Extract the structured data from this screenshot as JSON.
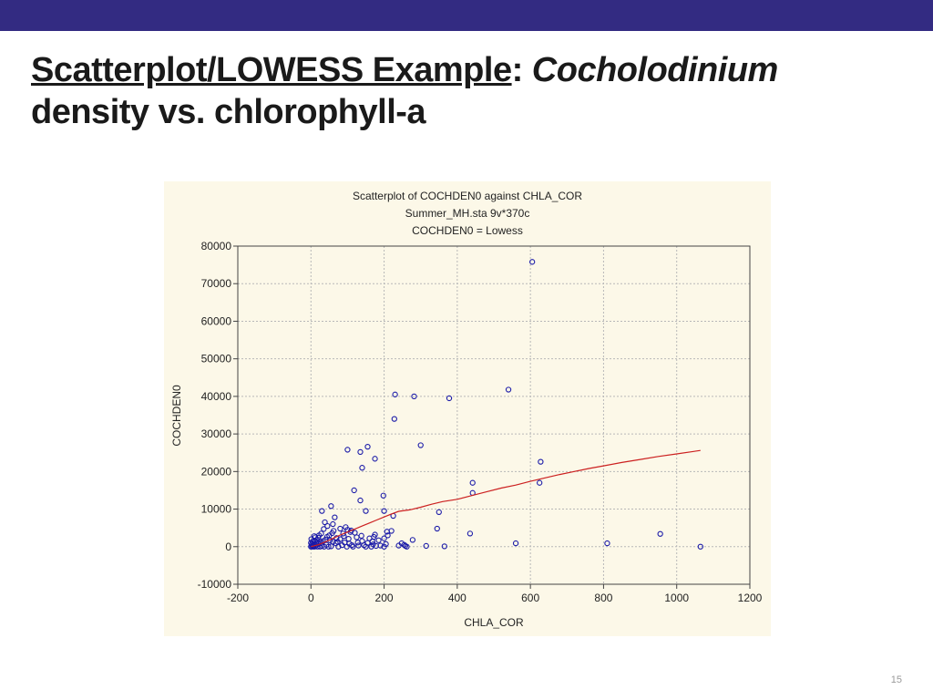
{
  "slide": {
    "title_underlined": "Scatterplot/LOWESS Example",
    "title_colon": ": ",
    "title_italic": "Cocholodinium",
    "title_rest": "density vs. chlorophyll-a",
    "page_number": "15"
  },
  "colors": {
    "top_bar": "#332b82",
    "points": "#1a1aa8",
    "lowess": "#cc2020",
    "panel_bg": "#fcf8e8",
    "grid": "#b8b8b8"
  },
  "chart_data": {
    "type": "scatter",
    "title": "Scatterplot of COCHDEN0 against CHLA_COR",
    "subtitle": "Summer_MH.sta 9v*370c",
    "subtitle2": "COCHDEN0 = Lowess",
    "xlabel": "CHLA_COR",
    "ylabel": "COCHDEN0",
    "xlim": [
      -200,
      1200
    ],
    "ylim": [
      -10000,
      80000
    ],
    "xticks": [
      -200,
      0,
      200,
      400,
      600,
      800,
      1000,
      1200
    ],
    "yticks": [
      -10000,
      0,
      10000,
      20000,
      30000,
      40000,
      50000,
      60000,
      70000,
      80000
    ],
    "grid": true,
    "legend": "none",
    "points": [
      [
        605,
        75800
      ],
      [
        540,
        41800
      ],
      [
        230,
        40500
      ],
      [
        282,
        40000
      ],
      [
        378,
        39500
      ],
      [
        228,
        34000
      ],
      [
        300,
        27000
      ],
      [
        100,
        25800
      ],
      [
        135,
        25200
      ],
      [
        155,
        26600
      ],
      [
        175,
        23400
      ],
      [
        140,
        21000
      ],
      [
        628,
        22600
      ],
      [
        442,
        17000
      ],
      [
        625,
        17000
      ],
      [
        442,
        14300
      ],
      [
        118,
        15000
      ],
      [
        198,
        13600
      ],
      [
        30,
        9500
      ],
      [
        55,
        10800
      ],
      [
        135,
        12300
      ],
      [
        150,
        9500
      ],
      [
        350,
        9200
      ],
      [
        200,
        9500
      ],
      [
        225,
        8200
      ],
      [
        345,
        4800
      ],
      [
        435,
        3500
      ],
      [
        220,
        4200
      ],
      [
        208,
        4000
      ],
      [
        175,
        3200
      ],
      [
        160,
        2200
      ],
      [
        120,
        3700
      ],
      [
        100,
        4500
      ],
      [
        80,
        4800
      ],
      [
        60,
        6000
      ],
      [
        45,
        5500
      ],
      [
        35,
        4700
      ],
      [
        28,
        3500
      ],
      [
        50,
        3000
      ],
      [
        70,
        2300
      ],
      [
        90,
        2800
      ],
      [
        20,
        2400
      ],
      [
        25,
        1400
      ],
      [
        40,
        1900
      ],
      [
        60,
        1300
      ],
      [
        15,
        1000
      ],
      [
        10,
        700
      ],
      [
        5,
        300
      ],
      [
        8,
        1600
      ],
      [
        12,
        2500
      ],
      [
        38,
        6500
      ],
      [
        65,
        7800
      ],
      [
        62,
        4200
      ],
      [
        95,
        5200
      ],
      [
        110,
        4300
      ],
      [
        125,
        2500
      ],
      [
        140,
        1500
      ],
      [
        185,
        1700
      ],
      [
        200,
        2200
      ],
      [
        278,
        1800
      ],
      [
        248,
        900
      ],
      [
        255,
        500
      ],
      [
        315,
        200
      ],
      [
        365,
        100
      ],
      [
        262,
        0
      ],
      [
        560,
        900
      ],
      [
        810,
        900
      ],
      [
        955,
        3400
      ],
      [
        1065,
        0
      ],
      [
        240,
        300
      ],
      [
        200,
        0
      ],
      [
        190,
        300
      ],
      [
        170,
        600
      ],
      [
        165,
        0
      ],
      [
        155,
        1000
      ],
      [
        145,
        400
      ],
      [
        130,
        300
      ],
      [
        115,
        0
      ],
      [
        105,
        800
      ],
      [
        98,
        0
      ],
      [
        85,
        400
      ],
      [
        75,
        0
      ],
      [
        68,
        900
      ],
      [
        55,
        100
      ],
      [
        48,
        0
      ],
      [
        42,
        500
      ],
      [
        36,
        0
      ],
      [
        30,
        200
      ],
      [
        25,
        0
      ],
      [
        20,
        700
      ],
      [
        18,
        0
      ],
      [
        14,
        300
      ],
      [
        10,
        0
      ],
      [
        6,
        100
      ],
      [
        3,
        0
      ],
      [
        2,
        500
      ],
      [
        0,
        0
      ],
      [
        0,
        1000
      ],
      [
        1,
        2000
      ],
      [
        4,
        1300
      ],
      [
        7,
        0
      ],
      [
        9,
        2800
      ],
      [
        16,
        1800
      ],
      [
        22,
        3000
      ],
      [
        27,
        900
      ],
      [
        33,
        1500
      ],
      [
        44,
        2600
      ],
      [
        52,
        1700
      ],
      [
        58,
        3600
      ],
      [
        73,
        1300
      ],
      [
        80,
        2000
      ],
      [
        88,
        3500
      ],
      [
        92,
        1100
      ],
      [
        103,
        2100
      ],
      [
        108,
        3900
      ],
      [
        112,
        400
      ],
      [
        128,
        1100
      ],
      [
        138,
        2900
      ],
      [
        150,
        0
      ],
      [
        168,
        1400
      ],
      [
        172,
        2600
      ],
      [
        178,
        200
      ],
      [
        205,
        700
      ],
      [
        210,
        3000
      ],
      [
        258,
        200
      ]
    ],
    "lowess": [
      [
        0,
        0
      ],
      [
        20,
        500
      ],
      [
        40,
        1300
      ],
      [
        60,
        2200
      ],
      [
        80,
        3100
      ],
      [
        100,
        3900
      ],
      [
        120,
        4700
      ],
      [
        140,
        5500
      ],
      [
        160,
        6300
      ],
      [
        180,
        7100
      ],
      [
        200,
        7900
      ],
      [
        220,
        8700
      ],
      [
        240,
        9400
      ],
      [
        270,
        9800
      ],
      [
        300,
        10500
      ],
      [
        330,
        11300
      ],
      [
        360,
        12000
      ],
      [
        400,
        12600
      ],
      [
        440,
        13600
      ],
      [
        480,
        14600
      ],
      [
        520,
        15600
      ],
      [
        560,
        16400
      ],
      [
        600,
        17400
      ],
      [
        640,
        18300
      ],
      [
        680,
        19200
      ],
      [
        720,
        20000
      ],
      [
        760,
        20800
      ],
      [
        800,
        21500
      ],
      [
        850,
        22400
      ],
      [
        900,
        23200
      ],
      [
        950,
        24000
      ],
      [
        1000,
        24700
      ],
      [
        1065,
        25600
      ]
    ]
  }
}
